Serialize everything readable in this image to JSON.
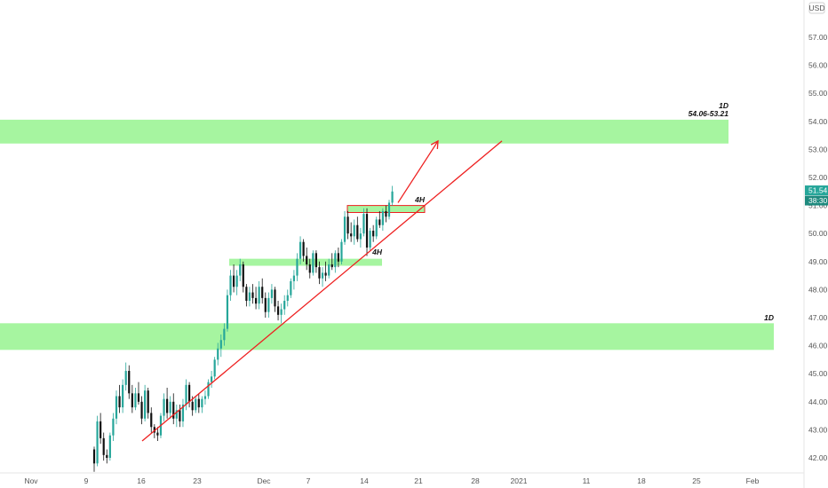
{
  "chart_data": {
    "type": "candlestick",
    "currency": "USD",
    "y_ticks": [
      "42.00",
      "43.00",
      "44.00",
      "45.00",
      "46.00",
      "47.00",
      "48.00",
      "49.00",
      "50.00",
      "51.00",
      "52.00",
      "53.00",
      "54.00",
      "55.00",
      "56.00",
      "57.00"
    ],
    "y_tick_values": [
      42,
      43,
      44,
      45,
      46,
      47,
      48,
      49,
      50,
      51,
      52,
      53,
      54,
      55,
      56,
      57
    ],
    "x_ticks": [
      "Nov",
      "9",
      "16",
      "23",
      "Dec",
      "7",
      "14",
      "21",
      "28",
      "2021",
      "11",
      "18",
      "25",
      "Feb"
    ],
    "last_price": "51.54",
    "countdown": "38:30",
    "zones": [
      {
        "label_line1": "1D",
        "label_line2": "54.06-53.21",
        "low": 53.21,
        "high": 54.06
      },
      {
        "label_line1": "1D",
        "label_line2": "",
        "low": 45.85,
        "high": 46.8
      },
      {
        "label_line1": "4H",
        "label_line2": "",
        "low": 48.85,
        "high": 49.1
      },
      {
        "label_line1": "4H",
        "label_line2": "",
        "low": 50.75,
        "high": 51.0
      }
    ],
    "trendline": {
      "from": {
        "date": "2020-11-16",
        "price": 42.6
      },
      "to": {
        "date": "2020-12-31",
        "price": 53.3
      }
    },
    "projection_arrow": {
      "from": {
        "date": "2020-12-18",
        "price": 51.1
      },
      "to": {
        "date": "2020-12-23",
        "price": 53.3
      }
    },
    "colors": {
      "up": "#26a69a",
      "down": "#111111",
      "zone": "#a6f5a0",
      "trendline": "#ee2020",
      "price_tag": "#26a69a",
      "countdown_tag": "#1e8a7e"
    },
    "candles": [
      {
        "o": 42.3,
        "h": 42.4,
        "l": 41.5,
        "c": 41.8
      },
      {
        "o": 41.8,
        "h": 43.5,
        "l": 41.7,
        "c": 43.3
      },
      {
        "o": 43.3,
        "h": 43.6,
        "l": 42.5,
        "c": 42.7
      },
      {
        "o": 42.7,
        "h": 42.9,
        "l": 41.9,
        "c": 42.1
      },
      {
        "o": 42.1,
        "h": 42.3,
        "l": 41.8,
        "c": 42.0
      },
      {
        "o": 42.0,
        "h": 42.9,
        "l": 41.9,
        "c": 42.8
      },
      {
        "o": 42.8,
        "h": 43.6,
        "l": 42.6,
        "c": 43.4
      },
      {
        "o": 43.4,
        "h": 44.4,
        "l": 43.2,
        "c": 44.2
      },
      {
        "o": 44.2,
        "h": 44.6,
        "l": 43.6,
        "c": 43.8
      },
      {
        "o": 43.8,
        "h": 44.8,
        "l": 43.6,
        "c": 44.6
      },
      {
        "o": 44.6,
        "h": 45.4,
        "l": 44.4,
        "c": 45.1
      },
      {
        "o": 45.1,
        "h": 45.3,
        "l": 44.1,
        "c": 44.3
      },
      {
        "o": 44.3,
        "h": 44.6,
        "l": 43.6,
        "c": 43.8
      },
      {
        "o": 43.8,
        "h": 44.5,
        "l": 43.7,
        "c": 44.3
      },
      {
        "o": 44.3,
        "h": 44.7,
        "l": 43.9,
        "c": 44.0
      },
      {
        "o": 44.0,
        "h": 44.2,
        "l": 43.2,
        "c": 43.4
      },
      {
        "o": 43.4,
        "h": 44.6,
        "l": 43.3,
        "c": 44.4
      },
      {
        "o": 44.4,
        "h": 44.5,
        "l": 43.4,
        "c": 43.6
      },
      {
        "o": 43.6,
        "h": 43.8,
        "l": 42.9,
        "c": 43.1
      },
      {
        "o": 43.1,
        "h": 43.2,
        "l": 42.7,
        "c": 42.9
      },
      {
        "o": 42.9,
        "h": 43.1,
        "l": 42.6,
        "c": 42.8
      },
      {
        "o": 42.8,
        "h": 43.6,
        "l": 42.7,
        "c": 43.5
      },
      {
        "o": 43.5,
        "h": 44.3,
        "l": 43.3,
        "c": 44.1
      },
      {
        "o": 44.1,
        "h": 44.5,
        "l": 43.4,
        "c": 43.6
      },
      {
        "o": 43.6,
        "h": 44.2,
        "l": 43.4,
        "c": 44.0
      },
      {
        "o": 44.0,
        "h": 44.3,
        "l": 43.2,
        "c": 43.4
      },
      {
        "o": 43.4,
        "h": 43.9,
        "l": 43.1,
        "c": 43.7
      },
      {
        "o": 43.7,
        "h": 43.9,
        "l": 43.1,
        "c": 43.3
      },
      {
        "o": 43.3,
        "h": 44.1,
        "l": 43.1,
        "c": 43.9
      },
      {
        "o": 43.9,
        "h": 44.8,
        "l": 43.7,
        "c": 44.6
      },
      {
        "o": 44.6,
        "h": 44.7,
        "l": 43.8,
        "c": 44.0
      },
      {
        "o": 44.0,
        "h": 44.2,
        "l": 43.5,
        "c": 43.7
      },
      {
        "o": 43.7,
        "h": 44.2,
        "l": 43.6,
        "c": 44.1
      },
      {
        "o": 44.1,
        "h": 44.3,
        "l": 43.6,
        "c": 43.8
      },
      {
        "o": 43.8,
        "h": 44.2,
        "l": 43.6,
        "c": 44.1
      },
      {
        "o": 44.1,
        "h": 44.4,
        "l": 43.9,
        "c": 44.2
      },
      {
        "o": 44.2,
        "h": 44.8,
        "l": 44.1,
        "c": 44.7
      },
      {
        "o": 44.7,
        "h": 45.1,
        "l": 44.5,
        "c": 44.9
      },
      {
        "o": 44.9,
        "h": 45.6,
        "l": 44.8,
        "c": 45.5
      },
      {
        "o": 45.5,
        "h": 46.1,
        "l": 45.3,
        "c": 45.9
      },
      {
        "o": 45.9,
        "h": 46.4,
        "l": 45.6,
        "c": 46.2
      },
      {
        "o": 46.2,
        "h": 46.8,
        "l": 46.0,
        "c": 46.6
      },
      {
        "o": 46.6,
        "h": 48.0,
        "l": 46.5,
        "c": 47.8
      },
      {
        "o": 47.8,
        "h": 48.7,
        "l": 47.6,
        "c": 48.5
      },
      {
        "o": 48.5,
        "h": 48.9,
        "l": 47.9,
        "c": 48.1
      },
      {
        "o": 48.1,
        "h": 48.7,
        "l": 47.8,
        "c": 48.5
      },
      {
        "o": 48.5,
        "h": 49.1,
        "l": 48.3,
        "c": 48.9
      },
      {
        "o": 48.9,
        "h": 49.0,
        "l": 47.9,
        "c": 48.1
      },
      {
        "o": 48.1,
        "h": 48.2,
        "l": 47.4,
        "c": 47.6
      },
      {
        "o": 47.6,
        "h": 48.1,
        "l": 47.4,
        "c": 47.9
      },
      {
        "o": 47.9,
        "h": 48.2,
        "l": 47.5,
        "c": 47.7
      },
      {
        "o": 47.7,
        "h": 48.1,
        "l": 47.3,
        "c": 47.5
      },
      {
        "o": 47.5,
        "h": 48.3,
        "l": 47.3,
        "c": 48.1
      },
      {
        "o": 48.1,
        "h": 48.4,
        "l": 47.5,
        "c": 47.7
      },
      {
        "o": 47.7,
        "h": 47.9,
        "l": 47.0,
        "c": 47.2
      },
      {
        "o": 47.2,
        "h": 47.9,
        "l": 47.0,
        "c": 47.7
      },
      {
        "o": 47.7,
        "h": 48.2,
        "l": 47.5,
        "c": 48.0
      },
      {
        "o": 48.0,
        "h": 48.1,
        "l": 47.2,
        "c": 47.4
      },
      {
        "o": 47.4,
        "h": 47.6,
        "l": 46.9,
        "c": 47.1
      },
      {
        "o": 47.1,
        "h": 47.5,
        "l": 46.8,
        "c": 47.3
      },
      {
        "o": 47.3,
        "h": 47.8,
        "l": 47.1,
        "c": 47.6
      },
      {
        "o": 47.6,
        "h": 48.0,
        "l": 47.4,
        "c": 47.8
      },
      {
        "o": 47.8,
        "h": 48.4,
        "l": 47.7,
        "c": 48.3
      },
      {
        "o": 48.3,
        "h": 48.7,
        "l": 48.0,
        "c": 48.5
      },
      {
        "o": 48.5,
        "h": 49.3,
        "l": 48.3,
        "c": 49.1
      },
      {
        "o": 49.1,
        "h": 49.9,
        "l": 48.9,
        "c": 49.7
      },
      {
        "o": 49.7,
        "h": 49.8,
        "l": 49.0,
        "c": 49.2
      },
      {
        "o": 49.2,
        "h": 49.5,
        "l": 48.7,
        "c": 48.9
      },
      {
        "o": 48.9,
        "h": 49.1,
        "l": 48.4,
        "c": 48.6
      },
      {
        "o": 48.6,
        "h": 49.4,
        "l": 48.5,
        "c": 49.3
      },
      {
        "o": 49.3,
        "h": 49.4,
        "l": 48.6,
        "c": 48.8
      },
      {
        "o": 48.8,
        "h": 49.0,
        "l": 48.2,
        "c": 48.4
      },
      {
        "o": 48.4,
        "h": 48.8,
        "l": 48.1,
        "c": 48.6
      },
      {
        "o": 48.6,
        "h": 49.0,
        "l": 48.3,
        "c": 48.5
      },
      {
        "o": 48.5,
        "h": 49.1,
        "l": 48.4,
        "c": 48.9
      },
      {
        "o": 48.9,
        "h": 49.3,
        "l": 48.7,
        "c": 48.8
      },
      {
        "o": 48.8,
        "h": 49.4,
        "l": 48.6,
        "c": 49.3
      },
      {
        "o": 49.3,
        "h": 49.5,
        "l": 48.8,
        "c": 49.0
      },
      {
        "o": 49.0,
        "h": 49.8,
        "l": 48.9,
        "c": 49.7
      },
      {
        "o": 49.7,
        "h": 50.8,
        "l": 49.6,
        "c": 50.6
      },
      {
        "o": 50.6,
        "h": 50.8,
        "l": 49.8,
        "c": 50.0
      },
      {
        "o": 50.0,
        "h": 50.4,
        "l": 49.7,
        "c": 49.9
      },
      {
        "o": 49.9,
        "h": 50.5,
        "l": 49.6,
        "c": 50.3
      },
      {
        "o": 50.3,
        "h": 50.6,
        "l": 49.7,
        "c": 49.8
      },
      {
        "o": 49.8,
        "h": 50.2,
        "l": 49.5,
        "c": 50.0
      },
      {
        "o": 50.0,
        "h": 50.9,
        "l": 49.9,
        "c": 50.7
      },
      {
        "o": 50.7,
        "h": 50.9,
        "l": 49.2,
        "c": 49.5
      },
      {
        "o": 49.5,
        "h": 50.2,
        "l": 49.4,
        "c": 50.1
      },
      {
        "o": 50.1,
        "h": 50.3,
        "l": 49.7,
        "c": 49.9
      },
      {
        "o": 49.9,
        "h": 50.6,
        "l": 49.8,
        "c": 50.5
      },
      {
        "o": 50.5,
        "h": 50.8,
        "l": 50.2,
        "c": 50.3
      },
      {
        "o": 50.3,
        "h": 50.9,
        "l": 50.1,
        "c": 50.8
      },
      {
        "o": 50.8,
        "h": 51.0,
        "l": 50.4,
        "c": 50.6
      },
      {
        "o": 50.6,
        "h": 51.2,
        "l": 50.5,
        "c": 51.1
      },
      {
        "o": 51.1,
        "h": 51.7,
        "l": 51.0,
        "c": 51.5
      }
    ]
  }
}
